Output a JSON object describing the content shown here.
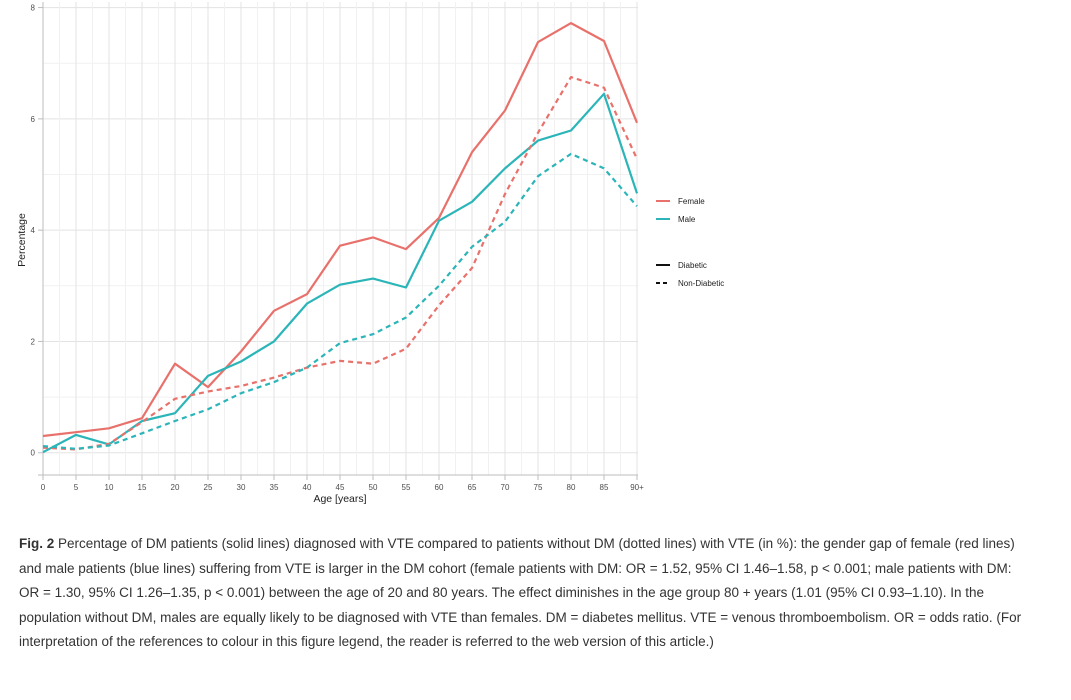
{
  "chart_data": {
    "type": "line",
    "title": "",
    "xlabel": "Age [years]",
    "ylabel": "Percentage",
    "x_tick_labels": [
      "0",
      "5",
      "10",
      "15",
      "20",
      "25",
      "30",
      "35",
      "40",
      "45",
      "50",
      "55",
      "60",
      "65",
      "70",
      "75",
      "80",
      "85",
      "90+"
    ],
    "y_ticks": [
      0,
      2,
      4,
      6,
      8
    ],
    "ylim": [
      -0.4,
      8.1
    ],
    "grid": true,
    "legend_position": "right",
    "legend_color": {
      "entries": [
        {
          "label": "Female",
          "color": "#e8716b"
        },
        {
          "label": "Male",
          "color": "#2bb5b8"
        }
      ]
    },
    "legend_linetype": {
      "entries": [
        {
          "label": "Diabetic",
          "dash": "solid"
        },
        {
          "label": "Non-Diabetic",
          "dash": "dotted"
        }
      ]
    },
    "series": [
      {
        "group": "Female",
        "type": "Diabetic",
        "color": "#e8716b",
        "dash": "solid",
        "values": [
          0.3,
          0.37,
          0.44,
          0.62,
          1.6,
          1.18,
          1.82,
          2.55,
          2.85,
          3.72,
          3.87,
          3.66,
          4.22,
          5.4,
          6.15,
          7.38,
          7.72,
          7.4,
          5.93
        ]
      },
      {
        "group": "Male",
        "type": "Diabetic",
        "color": "#2bb5b8",
        "dash": "solid",
        "values": [
          0.01,
          0.32,
          0.15,
          0.57,
          0.71,
          1.38,
          1.64,
          2.0,
          2.68,
          3.02,
          3.13,
          2.97,
          4.17,
          4.51,
          5.11,
          5.61,
          5.79,
          6.45,
          4.66
        ]
      },
      {
        "group": "Female",
        "type": "Non-Diabetic",
        "color": "#e8716b",
        "dash": "dotted",
        "values": [
          0.09,
          0.06,
          0.16,
          0.55,
          0.97,
          1.1,
          1.2,
          1.35,
          1.53,
          1.65,
          1.6,
          1.87,
          2.65,
          3.32,
          4.65,
          5.75,
          6.75,
          6.56,
          5.28
        ]
      },
      {
        "group": "Male",
        "type": "Non-Diabetic",
        "color": "#2bb5b8",
        "dash": "dotted",
        "values": [
          0.12,
          0.07,
          0.13,
          0.35,
          0.57,
          0.78,
          1.07,
          1.27,
          1.53,
          1.97,
          2.13,
          2.43,
          3.0,
          3.7,
          4.15,
          4.97,
          5.37,
          5.11,
          4.43
        ]
      }
    ]
  },
  "caption": {
    "label": "Fig. 2",
    "text": "Percentage of DM patients (solid lines) diagnosed with VTE compared to patients without DM (dotted lines) with VTE (in %): the gender gap of female (red lines) and male patients (blue lines) suffering from VTE is larger in the DM cohort (female patients with DM: OR = 1.52, 95% CI 1.46–1.58, p < 0.001; male patients with DM: OR = 1.30, 95% CI 1.26–1.35, p < 0.001) between the age of 20 and 80 years. The effect diminishes in the age group 80 + years (1.01 (95% CI 0.93–1.10). In the population without DM, males are equally likely to be diagnosed with VTE than females. DM = diabetes mellitus. VTE = venous thromboembolism. OR = odds ratio. (For interpretation of the references to colour in this figure legend, the reader is referred to the web version of this article.)"
  }
}
